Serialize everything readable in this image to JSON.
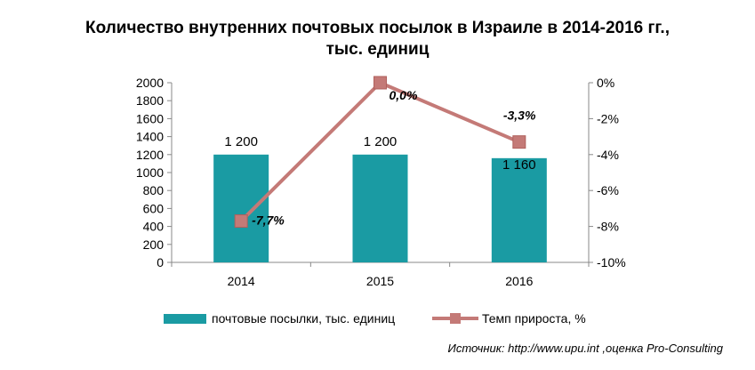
{
  "title_line1": "Количество внутренних почтовых посылок в Израиле в 2014-2016 гг.,",
  "title_line2": "тыс. единиц",
  "source": "Источник: http://www.upu.int ,оценка Pro-Consulting",
  "chart_data": {
    "type": "bar",
    "categories": [
      "2014",
      "2015",
      "2016"
    ],
    "series": [
      {
        "name": "почтовые посылки, тыс. единиц",
        "type": "bar",
        "axis": "left",
        "values": [
          1200,
          1200,
          1160
        ],
        "labels": [
          "1 200",
          "1 200",
          "1 160"
        ],
        "color": "#1a9ba3"
      },
      {
        "name": "Темп прироста, %",
        "type": "line",
        "axis": "right",
        "values": [
          -7.7,
          0.0,
          -3.3
        ],
        "labels": [
          "-7,7%",
          "0,0%",
          "-3,3%"
        ],
        "color": "#c47a77"
      }
    ],
    "y_left": {
      "ylim": [
        0,
        2000
      ],
      "ticks": [
        0,
        200,
        400,
        600,
        800,
        1000,
        1200,
        1400,
        1600,
        1800,
        2000
      ],
      "tick_labels": [
        "0",
        "200",
        "400",
        "600",
        "800",
        "1000",
        "1200",
        "1400",
        "1600",
        "1800",
        "2000"
      ]
    },
    "y_right": {
      "ylim": [
        -10,
        0
      ],
      "ticks": [
        -10,
        -8,
        -6,
        -4,
        -2,
        0
      ],
      "tick_labels": [
        "-10%",
        "-8%",
        "-6%",
        "-4%",
        "-2%",
        "0%"
      ]
    },
    "grid": false,
    "legend_position": "bottom"
  }
}
